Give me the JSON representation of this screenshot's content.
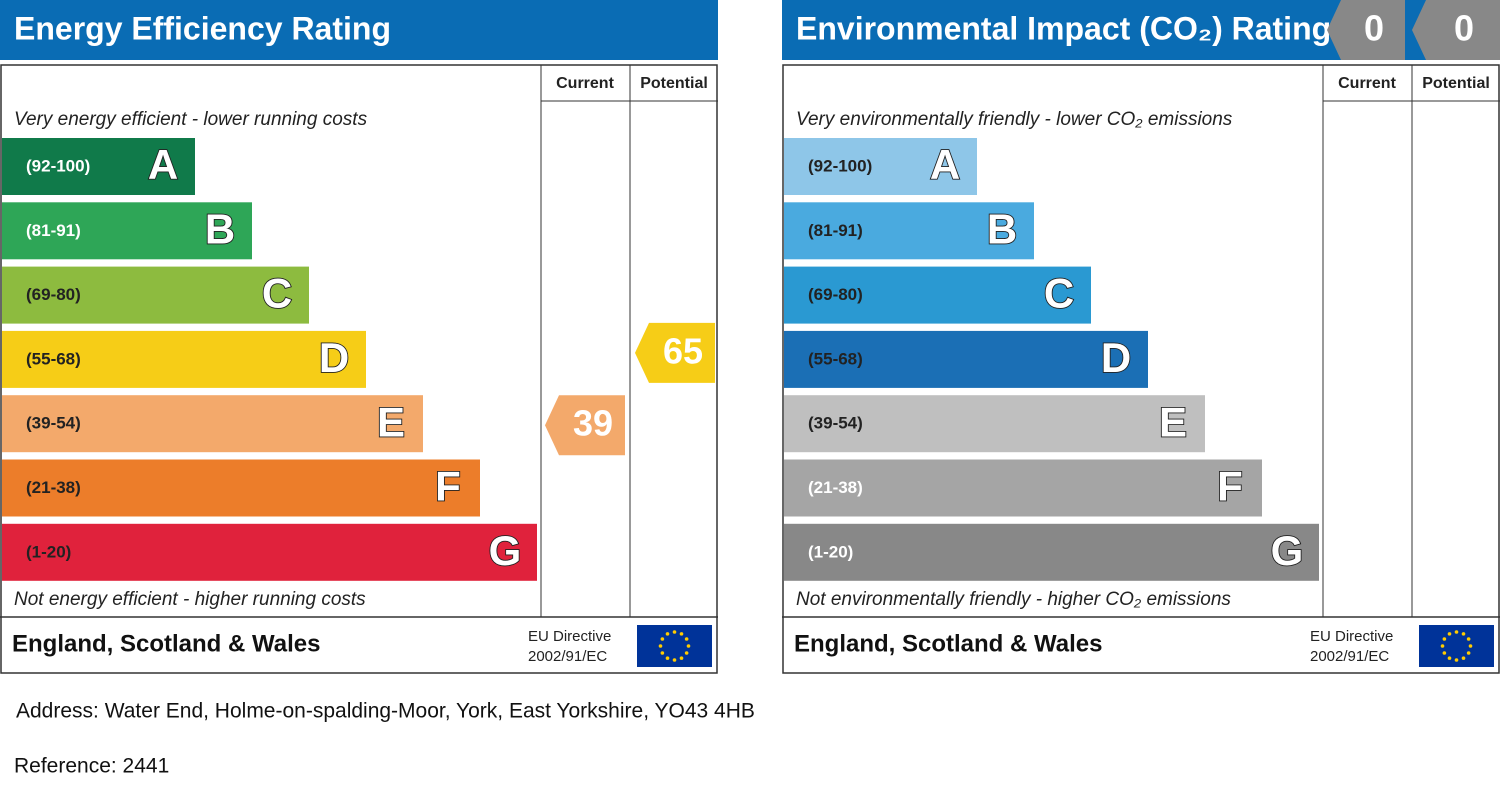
{
  "energy": {
    "title": "Energy Efficiency Rating",
    "col_current": "Current",
    "col_potential": "Potential",
    "top_note": "Very energy efficient - lower running costs",
    "bottom_note": "Not energy efficient - higher running costs",
    "bands": [
      {
        "range": {
          "min": 92,
          "max": 100,
          "label": "(92-100)"
        },
        "letter": "A",
        "color": "#107a4a",
        "label_color": "#ffffff"
      },
      {
        "range": {
          "min": 81,
          "max": 91,
          "label": "(81-91)"
        },
        "letter": "B",
        "color": "#2ea657",
        "label_color": "#ffffff"
      },
      {
        "range": {
          "min": 69,
          "max": 80,
          "label": "(69-80)"
        },
        "letter": "C",
        "color": "#8dbb3f",
        "label_color": "#222222"
      },
      {
        "range": {
          "min": 55,
          "max": 68,
          "label": "(55-68)"
        },
        "letter": "D",
        "color": "#f6cd17",
        "label_color": "#222222"
      },
      {
        "range": {
          "min": 39,
          "max": 54,
          "label": "(39-54)"
        },
        "letter": "E",
        "color": "#f3a96b",
        "label_color": "#222222"
      },
      {
        "range": {
          "min": 21,
          "max": 38,
          "label": "(21-38)"
        },
        "letter": "F",
        "color": "#ec7d2a",
        "label_color": "#222222"
      },
      {
        "range": {
          "min": 1,
          "max": 20,
          "label": "(1-20)"
        },
        "letter": "G",
        "color": "#e0223c",
        "label_color": "#222222"
      }
    ],
    "current": 39,
    "potential": 65,
    "footer": "England, Scotland & Wales",
    "directive_1": "EU Directive",
    "directive_2": "2002/91/EC"
  },
  "environmental": {
    "title": "Environmental Impact (CO₂) Rating",
    "col_current": "Current",
    "col_potential": "Potential",
    "top_note": "Very environmentally friendly - lower CO₂ emissions",
    "bottom_note": "Not environmentally friendly - higher CO₂ emissions",
    "bands": [
      {
        "range": {
          "min": 92,
          "max": 100,
          "label": "(92-100)"
        },
        "letter": "A",
        "color": "#8ec6e8",
        "label_color": "#222222"
      },
      {
        "range": {
          "min": 81,
          "max": 91,
          "label": "(81-91)"
        },
        "letter": "B",
        "color": "#4aaadf",
        "label_color": "#222222"
      },
      {
        "range": {
          "min": 69,
          "max": 80,
          "label": "(69-80)"
        },
        "letter": "C",
        "color": "#2a99d2",
        "label_color": "#222222"
      },
      {
        "range": {
          "min": 55,
          "max": 68,
          "label": "(55-68)"
        },
        "letter": "D",
        "color": "#1b6fb5",
        "label_color": "#222222"
      },
      {
        "range": {
          "min": 39,
          "max": 54,
          "label": "(39-54)"
        },
        "letter": "E",
        "color": "#bfbfbf",
        "label_color": "#222222"
      },
      {
        "range": {
          "min": 21,
          "max": 38,
          "label": "(21-38)"
        },
        "letter": "F",
        "color": "#a5a5a5",
        "label_color": "#ffffff"
      },
      {
        "range": {
          "min": 1,
          "max": 20,
          "label": "(1-20)"
        },
        "letter": "G",
        "color": "#888888",
        "label_color": "#ffffff"
      }
    ],
    "current": 0,
    "potential": 0,
    "empty_color": "#888888",
    "footer": "England, Scotland & Wales",
    "directive_1": "EU Directive",
    "directive_2": "2002/91/EC"
  },
  "address": "Address: Water End, Holme-on-spalding-Moor, York, East Yorkshire, YO43  4HB",
  "reference": "Reference: 2441"
}
